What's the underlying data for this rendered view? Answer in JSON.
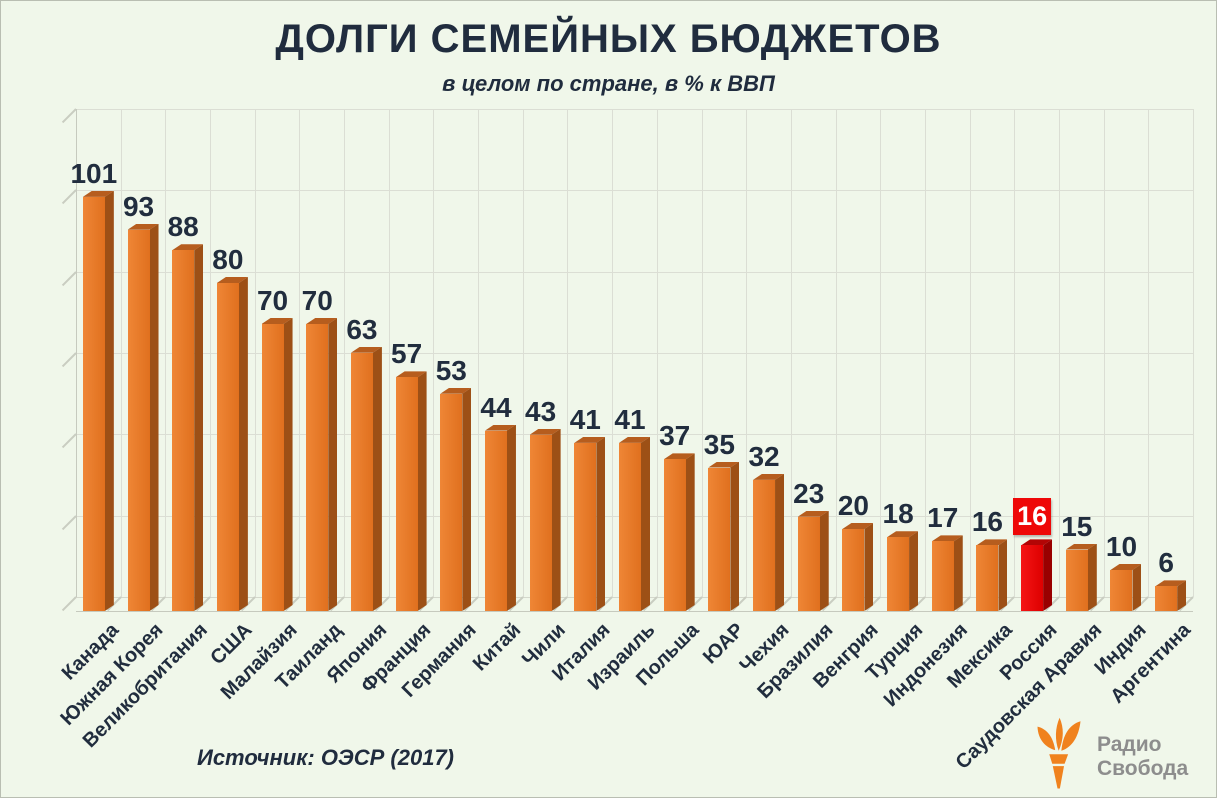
{
  "title": "ДОЛГИ СЕМЕЙНЫХ БЮДЖЕТОВ",
  "subtitle": "в целом по стране, в % к ВВП",
  "source": "Источник: ОЭСР (2017)",
  "logo": {
    "line1": "Радио",
    "line2": "Свобода",
    "icon": "torch-icon"
  },
  "chart_data": {
    "type": "bar",
    "title": "ДОЛГИ СЕМЕЙНЫХ БЮДЖЕТОВ",
    "subtitle": "в целом по стране, в % к ВВП",
    "categories": [
      "Канада",
      "Южная Корея",
      "Великобритания",
      "США",
      "Малайзия",
      "Таиланд",
      "Япония",
      "Франция",
      "Германия",
      "Китай",
      "Чили",
      "Италия",
      "Израиль",
      "Польша",
      "ЮАР",
      "Чехия",
      "Бразилия",
      "Венгрия",
      "Турция",
      "Индонезия",
      "Мексика",
      "Россия",
      "Саудовская Аравия",
      "Индия",
      "Аргентина"
    ],
    "values": [
      101,
      93,
      88,
      80,
      70,
      70,
      63,
      57,
      53,
      44,
      43,
      41,
      41,
      37,
      35,
      32,
      23,
      20,
      18,
      17,
      16,
      16,
      15,
      10,
      6
    ],
    "unit": "% к ВВП",
    "ylim": [
      0,
      120
    ],
    "gridline_step": 20,
    "grid": true,
    "legend": "none",
    "value_labels": true,
    "xlabel_rotation": -45,
    "highlight_index": 21,
    "highlight_category": "Россия"
  },
  "colors": {
    "background": "#f0f7ea",
    "grid": "#dbded4",
    "axis": "#c6cabe",
    "text": "#212d3e",
    "bar_front_light": "#ef8636",
    "bar_front_dark": "#e0701e",
    "bar_top": "#b65d1e",
    "bar_side": "#9d5016",
    "highlight_front_light": "#f51515",
    "highlight_front_dark": "#dd0000",
    "highlight_top": "#b30505",
    "highlight_side": "#990000",
    "highlight_label_bg": "#ee0808",
    "highlight_label_text": "#ffffff",
    "logo_orange": "#f0821e",
    "logo_text": "#8d8d8d"
  }
}
